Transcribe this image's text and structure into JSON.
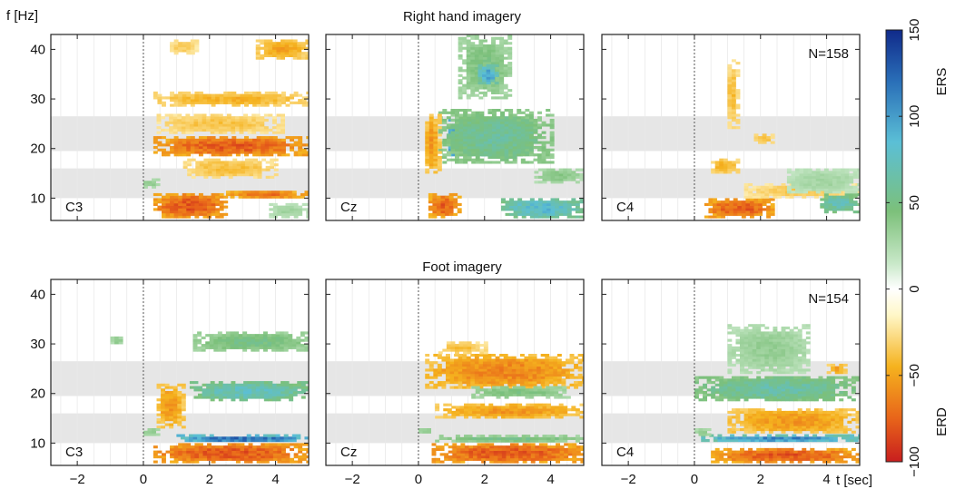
{
  "chart_data": {
    "type": "heatmap",
    "ylabel": "f [Hz]",
    "xlabel": "t [sec]",
    "xlim": [
      -2.8,
      5
    ],
    "ylim": [
      5.5,
      43
    ],
    "xticks": [
      -2,
      0,
      2,
      4
    ],
    "yticks": [
      10,
      20,
      30,
      40
    ],
    "shaded_bands_hz": [
      [
        10,
        16
      ],
      [
        19.5,
        26.5
      ]
    ],
    "onset_t": 0,
    "colorbar": {
      "min": -100,
      "max": 150,
      "ticks": [
        -100,
        -50,
        0,
        50,
        100,
        150
      ],
      "label_high": "ERS",
      "label_low": "ERD",
      "colors": [
        "#c81e1e",
        "#e8641a",
        "#f5b21e",
        "#fff7c8",
        "#ffffff",
        "#c8e8c8",
        "#7cc07a",
        "#5bbfd6",
        "#2a6fb8",
        "#102a8a"
      ]
    },
    "rows": [
      {
        "title": "Right hand imagery",
        "n_label": "N=158",
        "panels": [
          {
            "channel": "C3",
            "blobs": [
              {
                "t": [
                  0.3,
                  5.0
                ],
                "f": [
                  18.5,
                  22.5
                ],
                "v": -78
              },
              {
                "t": [
                  0.3,
                  5.0
                ],
                "f": [
                  28.5,
                  31.5
                ],
                "v": -45
              },
              {
                "t": [
                  0.4,
                  4.2
                ],
                "f": [
                  23,
                  27
                ],
                "v": -38
              },
              {
                "t": [
                  0.3,
                  2.5
                ],
                "f": [
                  6,
                  11
                ],
                "v": -80
              },
              {
                "t": [
                  2.5,
                  5.0
                ],
                "f": [
                  10,
                  11.5
                ],
                "v": -70
              },
              {
                "t": [
                  1.2,
                  4.0
                ],
                "f": [
                  14,
                  18
                ],
                "v": -40
              },
              {
                "t": [
                  3.4,
                  5.0
                ],
                "f": [
                  38,
                  42
                ],
                "v": -50
              },
              {
                "t": [
                  0.8,
                  1.6
                ],
                "f": [
                  39,
                  42
                ],
                "v": -35
              },
              {
                "t": [
                  3.8,
                  5.0
                ],
                "f": [
                  6,
                  9
                ],
                "v": 30
              },
              {
                "t": [
                  0.0,
                  0.4
                ],
                "f": [
                  12,
                  14
                ],
                "v": 40
              }
            ]
          },
          {
            "channel": "Cz",
            "blobs": [
              {
                "t": [
                  0.9,
                  3.2
                ],
                "f": [
                  18.5,
                  26
                ],
                "v": 140
              },
              {
                "t": [
                  0.6,
                  4.0
                ],
                "f": [
                  17,
                  28
                ],
                "v": 60
              },
              {
                "t": [
                  1.2,
                  2.8
                ],
                "f": [
                  30,
                  43
                ],
                "v": 45
              },
              {
                "t": [
                  1.8,
                  2.4
                ],
                "f": [
                  33,
                  37
                ],
                "v": 95
              },
              {
                "t": [
                  0.3,
                  1.2
                ],
                "f": [
                  6,
                  11
                ],
                "v": -75
              },
              {
                "t": [
                  0.2,
                  0.6
                ],
                "f": [
                  15,
                  27
                ],
                "v": -55
              },
              {
                "t": [
                  2.5,
                  5.0
                ],
                "f": [
                  6,
                  10
                ],
                "v": 85
              },
              {
                "t": [
                  3.5,
                  5.0
                ],
                "f": [
                  13,
                  16
                ],
                "v": 40
              }
            ]
          },
          {
            "channel": "C4",
            "blobs": [
              {
                "t": [
                  0.3,
                  2.4
                ],
                "f": [
                  6,
                  10
                ],
                "v": -78
              },
              {
                "t": [
                  1.5,
                  5.0
                ],
                "f": [
                  10,
                  13
                ],
                "v": -35
              },
              {
                "t": [
                  0.5,
                  1.3
                ],
                "f": [
                  15,
                  18
                ],
                "v": -45
              },
              {
                "t": [
                  1.0,
                  1.3
                ],
                "f": [
                  24,
                  38
                ],
                "v": -40
              },
              {
                "t": [
                  1.8,
                  2.4
                ],
                "f": [
                  21,
                  23
                ],
                "v": -40
              },
              {
                "t": [
                  3.8,
                  5.0
                ],
                "f": [
                  7,
                  11
                ],
                "v": 70
              },
              {
                "t": [
                  2.8,
                  5.0
                ],
                "f": [
                  11,
                  16
                ],
                "v": 30
              }
            ]
          }
        ]
      },
      {
        "title": "Foot imagery",
        "n_label": "N=154",
        "panels": [
          {
            "channel": "C3",
            "blobs": [
              {
                "t": [
                  0.3,
                  5.0
                ],
                "f": [
                  6,
                  10
                ],
                "v": -80
              },
              {
                "t": [
                  1.0,
                  5.0
                ],
                "f": [
                  10.3,
                  11.4
                ],
                "v": 125
              },
              {
                "t": [
                  1.4,
                  5.0
                ],
                "f": [
                  18.5,
                  22.5
                ],
                "v": 75
              },
              {
                "t": [
                  1.5,
                  5.0
                ],
                "f": [
                  28.5,
                  32.5
                ],
                "v": 50
              },
              {
                "t": [
                  0.4,
                  1.2
                ],
                "f": [
                  13,
                  22
                ],
                "v": -55
              },
              {
                "t": [
                  -1.0,
                  -0.6
                ],
                "f": [
                  30,
                  31.5
                ],
                "v": 40
              },
              {
                "t": [
                  0.0,
                  0.5
                ],
                "f": [
                  11.5,
                  13
                ],
                "v": 40
              }
            ]
          },
          {
            "channel": "Cz",
            "blobs": [
              {
                "t": [
                  0.2,
                  5.0
                ],
                "f": [
                  21,
                  28
                ],
                "v": -62
              },
              {
                "t": [
                  0.4,
                  5.0
                ],
                "f": [
                  6,
                  10
                ],
                "v": -80
              },
              {
                "t": [
                  0.5,
                  5.0
                ],
                "f": [
                  15,
                  18
                ],
                "v": -55
              },
              {
                "t": [
                  0.5,
                  5.0
                ],
                "f": [
                  10.2,
                  11.5
                ],
                "v": 50
              },
              {
                "t": [
                  0.6,
                  2.0
                ],
                "f": [
                  28,
                  30.5
                ],
                "v": -40
              },
              {
                "t": [
                  1.6,
                  4.5
                ],
                "f": [
                  19,
                  21.5
                ],
                "v": 45
              },
              {
                "t": [
                  0.0,
                  0.4
                ],
                "f": [
                  12,
                  13
                ],
                "v": 40
              }
            ]
          },
          {
            "channel": "C4",
            "blobs": [
              {
                "t": [
                  0.5,
                  5.0
                ],
                "f": [
                  6,
                  9
                ],
                "v": -80
              },
              {
                "t": [
                  0.2,
                  5.0
                ],
                "f": [
                  10.3,
                  11.5
                ],
                "v": 110
              },
              {
                "t": [
                  1.0,
                  5.0
                ],
                "f": [
                  12,
                  17
                ],
                "v": -55
              },
              {
                "t": [
                  0.0,
                  5.0
                ],
                "f": [
                  18.5,
                  23.5
                ],
                "v": 65
              },
              {
                "t": [
                  1.0,
                  3.5
                ],
                "f": [
                  24,
                  34
                ],
                "v": 35
              },
              {
                "t": [
                  4.0,
                  4.6
                ],
                "f": [
                  24,
                  26
                ],
                "v": -50
              },
              {
                "t": [
                  0.0,
                  0.5
                ],
                "f": [
                  11.5,
                  13
                ],
                "v": 40
              }
            ]
          }
        ]
      }
    ]
  }
}
